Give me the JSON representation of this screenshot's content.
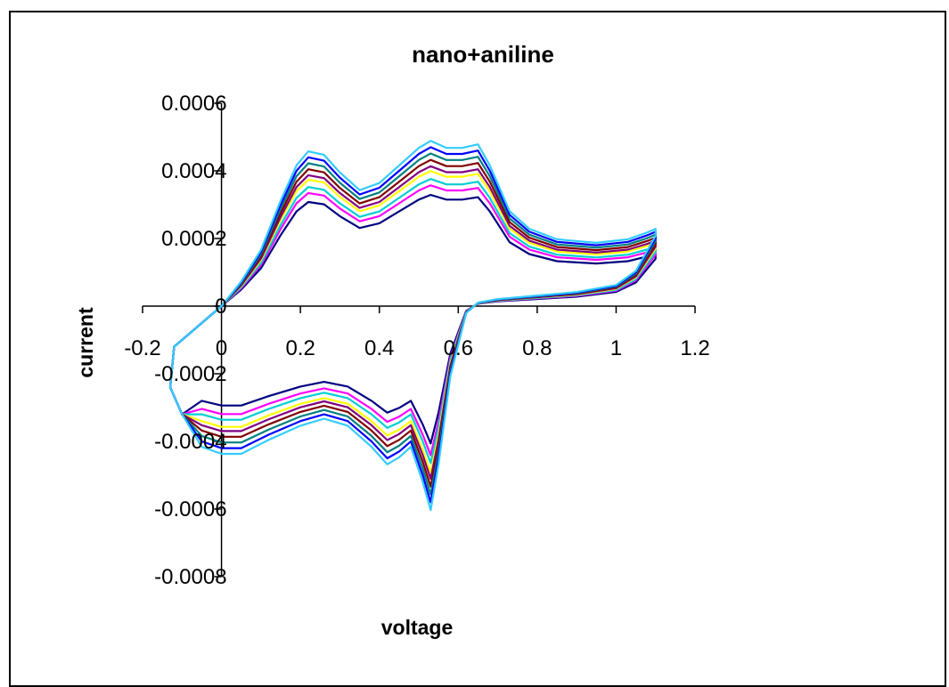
{
  "chart_data": {
    "type": "line",
    "title": "nano+aniline",
    "xlabel": "voltage",
    "ylabel": "current",
    "xlim": [
      -0.2,
      1.2
    ],
    "ylim": [
      -0.0008,
      0.0006
    ],
    "x_ticks": [
      -0.2,
      0,
      0.2,
      0.4,
      0.6,
      0.8,
      1,
      1.2
    ],
    "x_tick_labels": [
      "-0.2",
      "0",
      "0.2",
      "0.4",
      "0.6",
      "0.8",
      "1",
      "1.2"
    ],
    "y_ticks": [
      -0.0008,
      -0.0006,
      -0.0004,
      -0.0002,
      0,
      0.0002,
      0.0004,
      0.0006
    ],
    "y_tick_labels": [
      "-0.0008",
      "-0.0006",
      "-0.0004",
      "-0.0002",
      "0",
      "0.0002",
      "0.0004",
      "0.0006"
    ],
    "grid": false,
    "legend": "none",
    "series": [
      {
        "color": "#000080",
        "scale": 0.7
      },
      {
        "color": "#FF00FF",
        "scale": 0.76
      },
      {
        "color": "#00CED1",
        "scale": 0.8
      },
      {
        "color": "#FFFF00",
        "scale": 0.85
      },
      {
        "color": "#800080",
        "scale": 0.88
      },
      {
        "color": "#800000",
        "scale": 0.92
      },
      {
        "color": "#008080",
        "scale": 0.96
      },
      {
        "color": "#0000FF",
        "scale": 1.0
      },
      {
        "color": "#33CCFF",
        "scale": 1.04
      }
    ],
    "anodic_shape": [
      [
        -0.12,
        -0.00012
      ],
      [
        -0.05,
        -5e-05
      ],
      [
        0.0,
        0.0
      ],
      [
        0.05,
        7e-05
      ],
      [
        0.1,
        0.00016
      ],
      [
        0.15,
        0.0003
      ],
      [
        0.19,
        0.0004
      ],
      [
        0.22,
        0.00044
      ],
      [
        0.26,
        0.00043
      ],
      [
        0.3,
        0.00038
      ],
      [
        0.35,
        0.00033
      ],
      [
        0.4,
        0.00035
      ],
      [
        0.45,
        0.0004
      ],
      [
        0.5,
        0.00045
      ],
      [
        0.53,
        0.00047
      ],
      [
        0.57,
        0.00045
      ],
      [
        0.61,
        0.00045
      ],
      [
        0.65,
        0.00046
      ],
      [
        0.68,
        0.0004
      ],
      [
        0.73,
        0.00027
      ],
      [
        0.78,
        0.00022
      ],
      [
        0.85,
        0.00019
      ],
      [
        0.95,
        0.00018
      ],
      [
        1.03,
        0.00019
      ],
      [
        1.08,
        0.00021
      ],
      [
        1.1,
        0.00022
      ]
    ],
    "cathodic_shape": [
      [
        1.1,
        0.0002
      ],
      [
        1.05,
        0.0001
      ],
      [
        1.0,
        6e-05
      ],
      [
        0.9,
        4e-05
      ],
      [
        0.8,
        3e-05
      ],
      [
        0.7,
        2e-05
      ],
      [
        0.65,
        1e-05
      ],
      [
        0.62,
        -2e-05
      ],
      [
        0.58,
        -0.0002
      ],
      [
        0.55,
        -0.00045
      ],
      [
        0.53,
        -0.00058
      ],
      [
        0.51,
        -0.0005
      ],
      [
        0.48,
        -0.0004
      ],
      [
        0.45,
        -0.00043
      ],
      [
        0.42,
        -0.00045
      ],
      [
        0.38,
        -0.0004
      ],
      [
        0.32,
        -0.00034
      ],
      [
        0.26,
        -0.00032
      ],
      [
        0.2,
        -0.00034
      ],
      [
        0.12,
        -0.00038
      ],
      [
        0.05,
        -0.00042
      ],
      [
        0.0,
        -0.00042
      ],
      [
        -0.05,
        -0.0004
      ],
      [
        -0.1,
        -0.00032
      ],
      [
        -0.13,
        -0.00024
      ],
      [
        -0.12,
        -0.00012
      ]
    ]
  }
}
